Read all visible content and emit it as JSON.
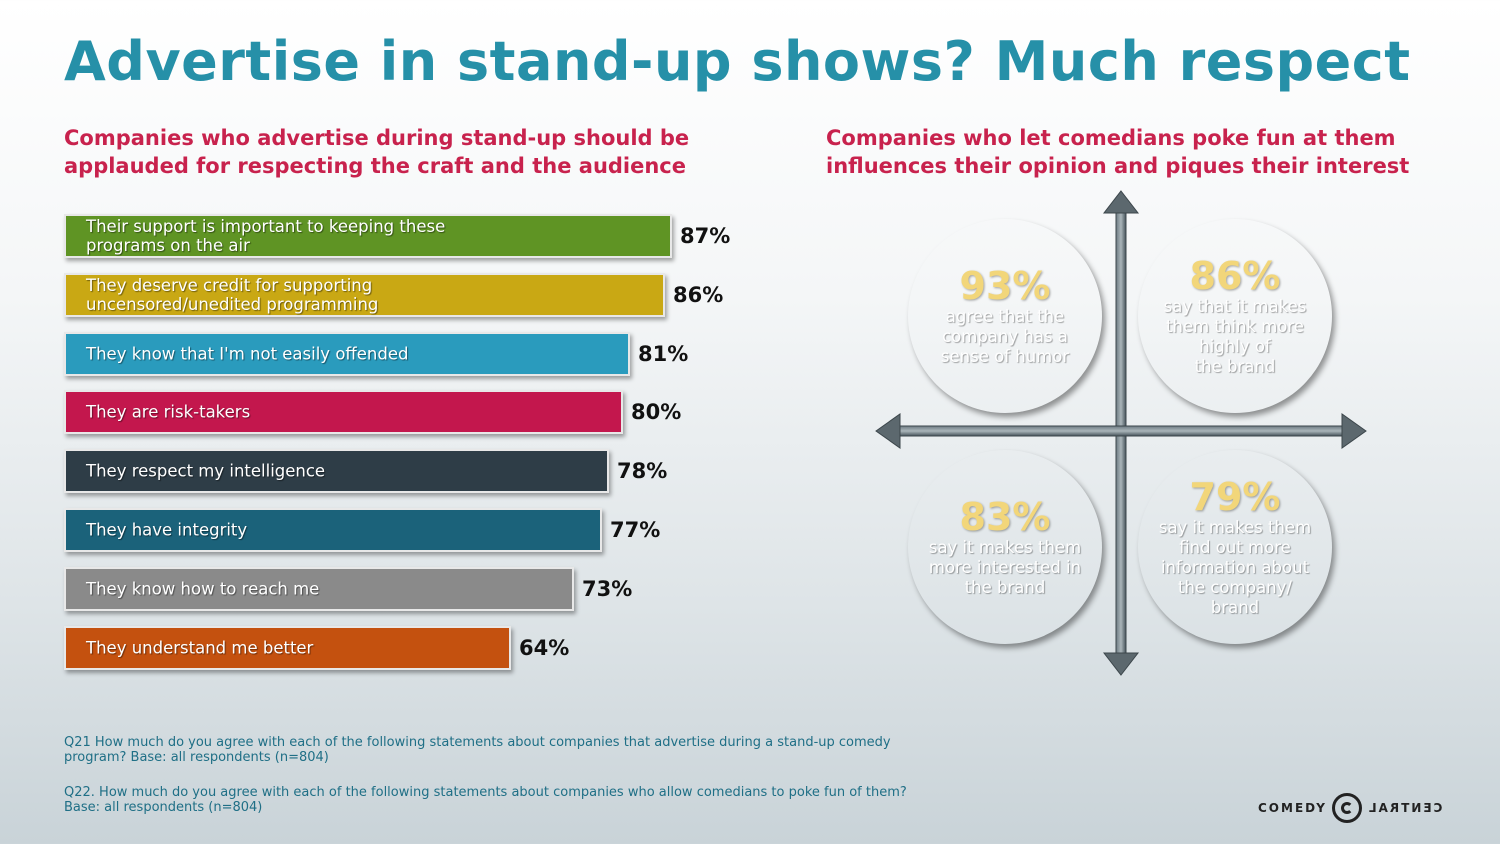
{
  "title": "Advertise in stand-up shows? Much respect",
  "left_subtitle": "Companies who advertise during stand-up should be\napplauded for respecting the craft and the audience",
  "right_subtitle": "Companies who let comedians poke fun at them\ninfluences their opinion and piques their interest",
  "chart_data": [
    {
      "type": "bar",
      "orientation": "horizontal",
      "categories": [
        "Their support is important to keeping these\nprograms on the air",
        "They deserve credit for supporting\nuncensored/unedited programming",
        "They know that I'm not easily offended",
        "They are risk-takers",
        "They respect my intelligence",
        "They have integrity",
        "They know how to reach me",
        "They understand me better"
      ],
      "values": [
        87,
        86,
        81,
        80,
        78,
        77,
        73,
        64
      ],
      "value_labels": [
        "87%",
        "86%",
        "81%",
        "80%",
        "78%",
        "77%",
        "73%",
        "64%"
      ],
      "colors": [
        "#5f9424",
        "#c9a814",
        "#2a9bbd",
        "#c3174d",
        "#2e3d47",
        "#1b627a",
        "#8a8a8a",
        "#c4510f"
      ],
      "xlim": [
        0,
        100
      ]
    },
    {
      "type": "quadrant",
      "items": [
        {
          "value": "93%",
          "text": "agree that the\ncompany has a\nsense of humor",
          "color": "#c3602a",
          "quadrant": "top-left"
        },
        {
          "value": "86%",
          "text": "say that it makes\nthem think more\nhighly of\nthe brand",
          "color": "#c5325a",
          "quadrant": "top-right"
        },
        {
          "value": "83%",
          "text": "say it makes them\nmore interested in\nthe brand",
          "color": "#6a9a2e",
          "quadrant": "bottom-left"
        },
        {
          "value": "79%",
          "text": "say it makes them\nfind out more\ninformation about\nthe company/\nbrand",
          "color": "#2d9bbb",
          "quadrant": "bottom-right"
        }
      ]
    }
  ],
  "footnotes": [
    "Q21 How much do you agree with each of the following statements about companies that advertise during a stand-up comedy\nprogram? Base: all respondents (n=804)",
    "Q22. How much do you agree with each of the following statements about companies who allow comedians to poke fun of them?\nBase: all respondents (n=804)"
  ],
  "logo": {
    "left": "COMEDY",
    "right": "CENTRAL"
  }
}
